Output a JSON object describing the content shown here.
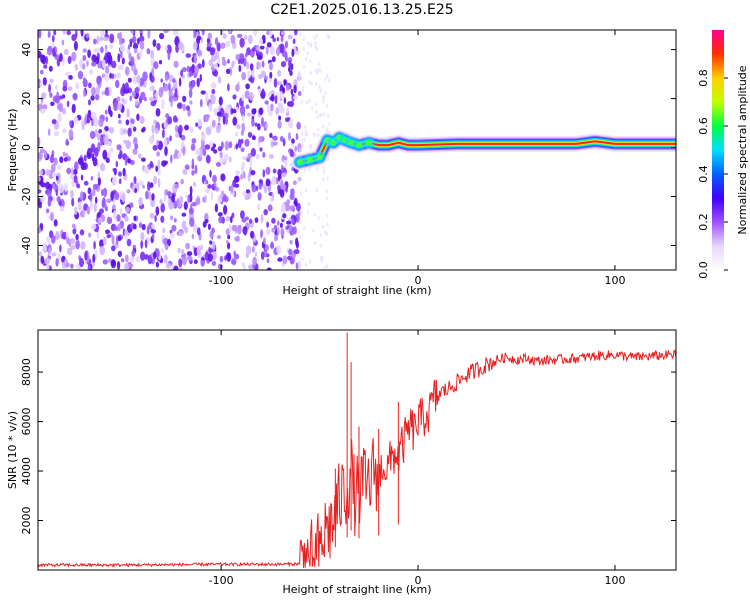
{
  "title": "C2E1.2025.016.13.25.E25",
  "chart_data": [
    {
      "type": "heatmap",
      "xlabel": "Height of straight line (km)",
      "ylabel": "Frequency (Hz)",
      "xlim": [
        -193,
        131
      ],
      "ylim": [
        -50,
        48
      ],
      "x_ticks": [
        -100,
        0,
        100
      ],
      "y_ticks": [
        -40,
        -20,
        0,
        20,
        40
      ],
      "noise_region_x": [
        -193,
        -60
      ],
      "signal_track": {
        "x": [
          -60,
          -55,
          -50,
          -46,
          -43,
          -40,
          -37,
          -34,
          -30,
          -25,
          -20,
          -15,
          -10,
          -5,
          0,
          20,
          50,
          80,
          90,
          100,
          131
        ],
        "freq": [
          -6,
          -5,
          -4,
          3,
          2,
          4,
          3,
          2,
          1,
          2,
          1,
          1,
          2,
          1,
          1,
          1.5,
          1.5,
          1.5,
          2.5,
          1.5,
          1.5
        ]
      },
      "colorbar": {
        "label": "Normalized spectral amplitude",
        "range": [
          0,
          1
        ],
        "ticks": [
          "0.0",
          "0.2",
          "0.4",
          "0.6",
          "0.8"
        ],
        "colors": [
          "#ffffff",
          "#e8d5ff",
          "#a050ff",
          "#4000ff",
          "#0060ff",
          "#00e0ff",
          "#00ff40",
          "#c0ff00",
          "#ffd000",
          "#ff3000",
          "#ff0090"
        ]
      }
    },
    {
      "type": "line",
      "xlabel": "Height of straight line (km)",
      "ylabel": "SNR (10 * v/v)",
      "xlim": [
        -193,
        131
      ],
      "ylim": [
        0,
        9700
      ],
      "x_ticks": [
        -100,
        0,
        100
      ],
      "y_ticks": [
        2000,
        4000,
        6000,
        8000
      ],
      "series": [
        {
          "color": "#e82020",
          "x": [
            -193,
            -150,
            -100,
            -70,
            -60,
            -55,
            -50,
            -48,
            -46,
            -44,
            -42,
            -40,
            -38,
            -36,
            -34,
            -32,
            -30,
            -28,
            -26,
            -24,
            -22,
            -20,
            -18,
            -16,
            -14,
            -12,
            -10,
            -8,
            -6,
            -4,
            -2,
            0,
            2,
            4,
            6,
            8,
            10,
            12,
            15,
            20,
            25,
            30,
            35,
            40,
            45,
            50,
            55,
            60,
            70,
            80,
            90,
            100,
            110,
            120,
            131
          ],
          "y": [
            200,
            200,
            230,
            230,
            250,
            400,
            900,
            1300,
            1800,
            1700,
            2300,
            2800,
            3100,
            3300,
            4000,
            2900,
            3200,
            3500,
            3300,
            3600,
            4200,
            3500,
            4400,
            4000,
            4400,
            4700,
            4600,
            5000,
            5400,
            5800,
            5600,
            6000,
            6100,
            6300,
            6400,
            6900,
            7000,
            7200,
            7300,
            7600,
            7900,
            8100,
            8300,
            8500,
            8600,
            8500,
            8550,
            8450,
            8500,
            8550,
            8650,
            8700,
            8600,
            8650,
            8700
          ]
        }
      ],
      "spikes": [
        {
          "x": -42,
          "y": 4100
        },
        {
          "x": -36,
          "y": 9600
        },
        {
          "x": -34,
          "y": 8400
        },
        {
          "x": -30,
          "y": 5800
        },
        {
          "x": -20,
          "y": 5700
        },
        {
          "x": -10,
          "y": 6800
        }
      ]
    }
  ]
}
